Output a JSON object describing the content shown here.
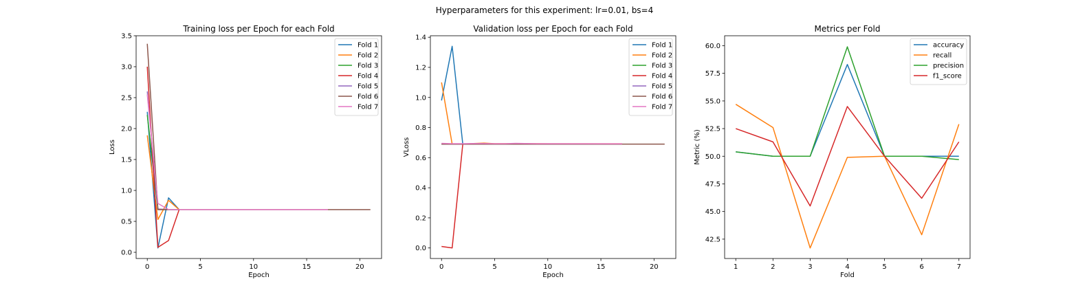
{
  "suptitle": "Hyperparameters for this experiment: lr=0.01, bs=4",
  "chart_data": [
    {
      "type": "line",
      "title": "Training loss per Epoch for each Fold",
      "xlabel": "Epoch",
      "ylabel": "Loss",
      "xlim": [
        -1.05,
        22.05
      ],
      "ylim": [
        -0.1,
        3.5
      ],
      "xticks": [
        0,
        5,
        10,
        15,
        20
      ],
      "yticks": [
        0.0,
        0.5,
        1.0,
        1.5,
        2.0,
        2.5,
        3.0,
        3.5
      ],
      "legend_position": "top-right",
      "series": [
        {
          "name": "Fold 1",
          "color": "#1f77b4",
          "x": [
            0,
            1,
            2,
            3
          ],
          "y": [
            2.27,
            0.07,
            0.88,
            0.69
          ]
        },
        {
          "name": "Fold 2",
          "color": "#ff7f0e",
          "x": [
            0,
            1,
            2,
            3
          ],
          "y": [
            1.89,
            0.53,
            0.84,
            0.69
          ]
        },
        {
          "name": "Fold 3",
          "color": "#2ca02c",
          "x": [
            0,
            1,
            2,
            3
          ],
          "y": [
            2.22,
            0.69,
            0.69,
            0.69
          ]
        },
        {
          "name": "Fold 4",
          "color": "#d62728",
          "x": [
            0,
            1,
            2,
            3
          ],
          "y": [
            3.0,
            0.08,
            0.19,
            0.69
          ]
        },
        {
          "name": "Fold 5",
          "color": "#9467bd",
          "x": [
            0,
            1,
            2,
            3
          ],
          "y": [
            2.6,
            0.7,
            0.69,
            0.69
          ]
        },
        {
          "name": "Fold 6",
          "color": "#8c564b",
          "x": [
            0,
            1,
            2,
            3,
            5,
            10,
            15,
            17,
            21
          ],
          "y": [
            3.37,
            0.69,
            0.69,
            0.69,
            0.69,
            0.69,
            0.69,
            0.69,
            0.69
          ]
        },
        {
          "name": "Fold 7",
          "color": "#e377c2",
          "x": [
            0,
            1,
            2,
            3,
            10,
            17
          ],
          "y": [
            2.55,
            0.79,
            0.69,
            0.69,
            0.69,
            0.69
          ]
        }
      ]
    },
    {
      "type": "line",
      "title": "Validation loss per Epoch for each Fold",
      "xlabel": "Epoch",
      "ylabel": "VLoss",
      "xlim": [
        -1.05,
        22.05
      ],
      "ylim": [
        -0.07,
        1.41
      ],
      "xticks": [
        0,
        5,
        10,
        15,
        20
      ],
      "yticks": [
        0.0,
        0.2,
        0.4,
        0.6,
        0.8,
        1.0,
        1.2,
        1.4
      ],
      "legend_position": "top-right",
      "series": [
        {
          "name": "Fold 1",
          "color": "#1f77b4",
          "x": [
            0,
            1,
            2,
            3
          ],
          "y": [
            0.98,
            1.34,
            0.69,
            0.69
          ]
        },
        {
          "name": "Fold 2",
          "color": "#ff7f0e",
          "x": [
            0,
            1,
            2,
            3,
            4,
            5,
            6,
            7,
            8,
            9,
            10,
            17
          ],
          "y": [
            1.1,
            0.69,
            0.69,
            0.694,
            0.697,
            0.693,
            0.693,
            0.693,
            0.693,
            0.693,
            0.692,
            0.692
          ]
        },
        {
          "name": "Fold 3",
          "color": "#2ca02c",
          "x": [
            0,
            1,
            2,
            3,
            5,
            10,
            17
          ],
          "y": [
            0.69,
            0.69,
            0.69,
            0.69,
            0.69,
            0.69,
            0.69
          ]
        },
        {
          "name": "Fold 4",
          "color": "#d62728",
          "x": [
            0,
            1,
            2,
            3
          ],
          "y": [
            0.01,
            0.0,
            0.69,
            0.69
          ]
        },
        {
          "name": "Fold 5",
          "color": "#9467bd",
          "x": [
            0,
            1,
            2,
            3,
            10,
            17
          ],
          "y": [
            0.69,
            0.69,
            0.69,
            0.69,
            0.69,
            0.69
          ]
        },
        {
          "name": "Fold 6",
          "color": "#8c564b",
          "x": [
            0,
            1,
            2,
            3,
            10,
            17,
            21
          ],
          "y": [
            0.69,
            0.69,
            0.69,
            0.69,
            0.69,
            0.69,
            0.69
          ]
        },
        {
          "name": "Fold 7",
          "color": "#e377c2",
          "x": [
            0,
            1,
            2,
            3,
            4,
            5,
            6,
            7,
            8,
            9,
            10,
            17
          ],
          "y": [
            0.695,
            0.693,
            0.693,
            0.694,
            0.694,
            0.693,
            0.693,
            0.695,
            0.694,
            0.693,
            0.693,
            0.692
          ]
        }
      ]
    },
    {
      "type": "line",
      "title": "Metrics per Fold",
      "xlabel": "Fold",
      "ylabel": "Metric (%)",
      "xlim": [
        0.7,
        7.3
      ],
      "ylim": [
        40.75,
        60.9
      ],
      "xticks": [
        1,
        2,
        3,
        4,
        5,
        6,
        7
      ],
      "yticks": [
        42.5,
        45.0,
        47.5,
        50.0,
        52.5,
        55.0,
        57.5,
        60.0
      ],
      "legend_position": "top-right",
      "series": [
        {
          "name": "accuracy",
          "color": "#1f77b4",
          "x": [
            1,
            2,
            3,
            4,
            5,
            6,
            7
          ],
          "y": [
            50.4,
            50.0,
            50.0,
            58.3,
            50.0,
            50.0,
            50.0
          ]
        },
        {
          "name": "recall",
          "color": "#ff7f0e",
          "x": [
            1,
            2,
            3,
            4,
            5,
            6,
            7
          ],
          "y": [
            54.7,
            52.6,
            41.7,
            49.9,
            50.0,
            42.9,
            52.9
          ]
        },
        {
          "name": "precision",
          "color": "#2ca02c",
          "x": [
            1,
            2,
            3,
            4,
            5,
            6,
            7
          ],
          "y": [
            50.4,
            50.0,
            50.0,
            59.9,
            50.0,
            50.0,
            49.7
          ]
        },
        {
          "name": "f1_score",
          "color": "#d62728",
          "x": [
            1,
            2,
            3,
            4,
            5,
            6,
            7
          ],
          "y": [
            52.5,
            51.3,
            45.5,
            54.5,
            50.0,
            46.2,
            51.3
          ]
        }
      ]
    }
  ]
}
